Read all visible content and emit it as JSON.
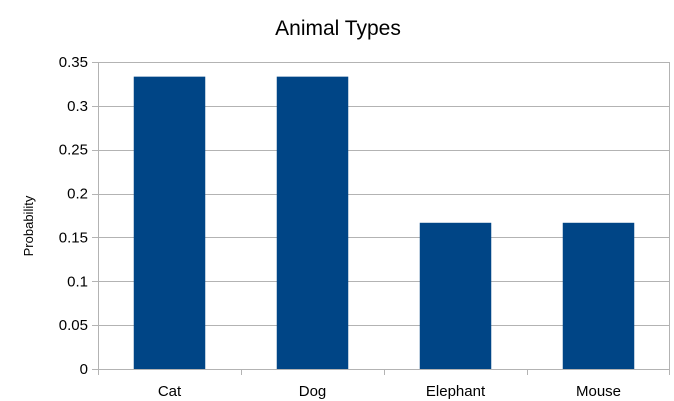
{
  "chart_data": {
    "type": "bar",
    "title": "Animal Types",
    "xlabel": "",
    "ylabel": "Probability",
    "categories": [
      "Cat",
      "Dog",
      "Elephant",
      "Mouse"
    ],
    "values": [
      0.3333,
      0.3333,
      0.1667,
      0.1667
    ],
    "ylim": [
      0,
      0.35
    ],
    "yticks": [
      "0",
      "0.05",
      "0.1",
      "0.15",
      "0.2",
      "0.25",
      "0.3",
      "0.35"
    ],
    "ytick_values": [
      0,
      0.05,
      0.1,
      0.15,
      0.2,
      0.25,
      0.3,
      0.35
    ],
    "grid": true,
    "legend": "none",
    "colors": {
      "bar": "#004586",
      "grid": "#b3b3b3",
      "text": "#000000",
      "background": "#ffffff"
    }
  }
}
